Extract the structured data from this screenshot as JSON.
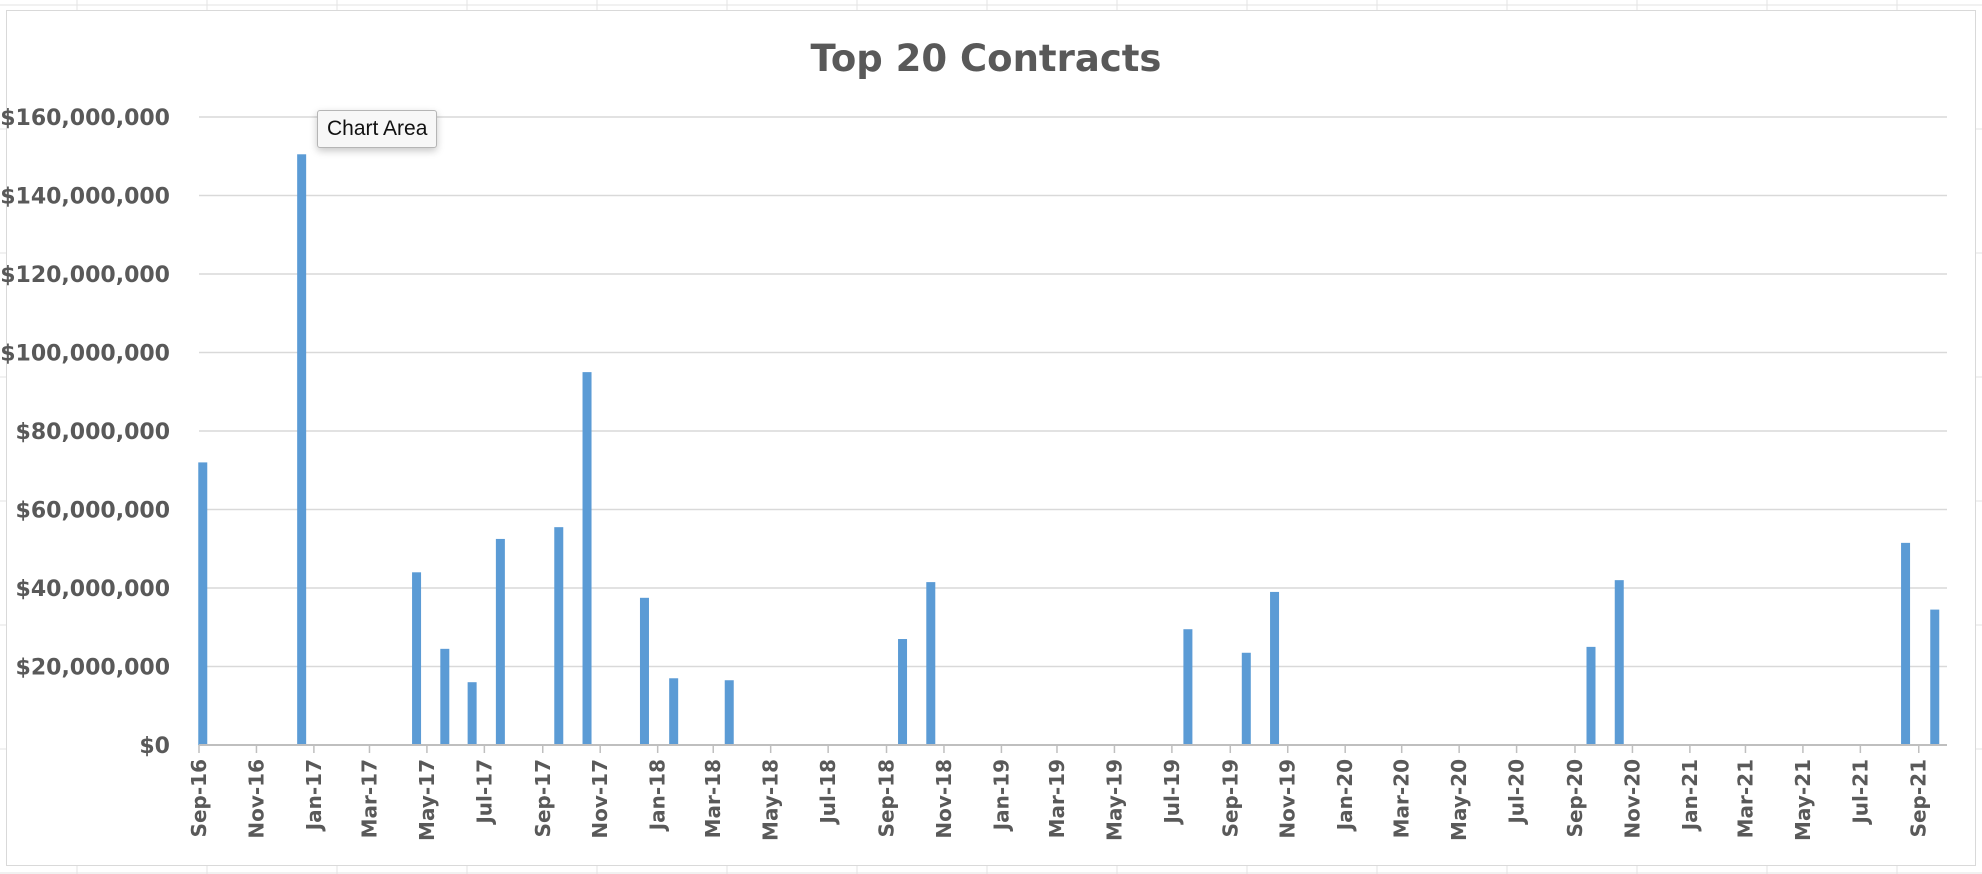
{
  "colors": {
    "bar": "#5b9bd5",
    "gridline": "#d9d9d9",
    "axis": "#bfbfbf",
    "text": "#595959"
  },
  "tooltip": {
    "label": "Chart Area"
  },
  "chart_data": {
    "type": "bar",
    "title": "Top 20 Contracts",
    "xlabel": "",
    "ylabel": "",
    "ylim": [
      0,
      160000000
    ],
    "yticks": [
      "$0",
      "$20,000,000",
      "$40,000,000",
      "$60,000,000",
      "$80,000,000",
      "$100,000,000",
      "$120,000,000",
      "$140,000,000",
      "$160,000,000"
    ],
    "x_axis_range": [
      "2016-09-01",
      "2021-10-01"
    ],
    "x_tick_labels": [
      "Sep-16",
      "Nov-16",
      "Jan-17",
      "Mar-17",
      "May-17",
      "Jul-17",
      "Sep-17",
      "Nov-17",
      "Jan-18",
      "Mar-18",
      "May-18",
      "Jul-18",
      "Sep-18",
      "Nov-18",
      "Jan-19",
      "Mar-19",
      "May-19",
      "Jul-19",
      "Sep-19",
      "Nov-19",
      "Jan-20",
      "Mar-20",
      "May-20",
      "Jul-20",
      "Sep-20",
      "Nov-20",
      "Jan-21",
      "Mar-21",
      "May-21",
      "Jul-21",
      "Sep-21"
    ],
    "grid": true,
    "legend": "none",
    "bars": [
      {
        "date": "2016-09-05",
        "value": 72000000
      },
      {
        "date": "2016-12-19",
        "value": 150500000
      },
      {
        "date": "2017-04-20",
        "value": 44000000
      },
      {
        "date": "2017-05-20",
        "value": 24500000
      },
      {
        "date": "2017-06-18",
        "value": 16000000
      },
      {
        "date": "2017-07-18",
        "value": 52500000
      },
      {
        "date": "2017-09-18",
        "value": 55500000
      },
      {
        "date": "2017-10-18",
        "value": 95000000
      },
      {
        "date": "2017-12-18",
        "value": 37500000
      },
      {
        "date": "2018-01-18",
        "value": 17000000
      },
      {
        "date": "2018-03-18",
        "value": 16500000
      },
      {
        "date": "2018-09-18",
        "value": 27000000
      },
      {
        "date": "2018-10-18",
        "value": 41500000
      },
      {
        "date": "2019-07-18",
        "value": 29500000
      },
      {
        "date": "2019-09-18",
        "value": 23500000
      },
      {
        "date": "2019-10-18",
        "value": 39000000
      },
      {
        "date": "2020-09-18",
        "value": 25000000
      },
      {
        "date": "2020-10-18",
        "value": 42000000
      },
      {
        "date": "2021-08-18",
        "value": 51500000
      },
      {
        "date": "2021-09-18",
        "value": 34500000
      }
    ]
  }
}
